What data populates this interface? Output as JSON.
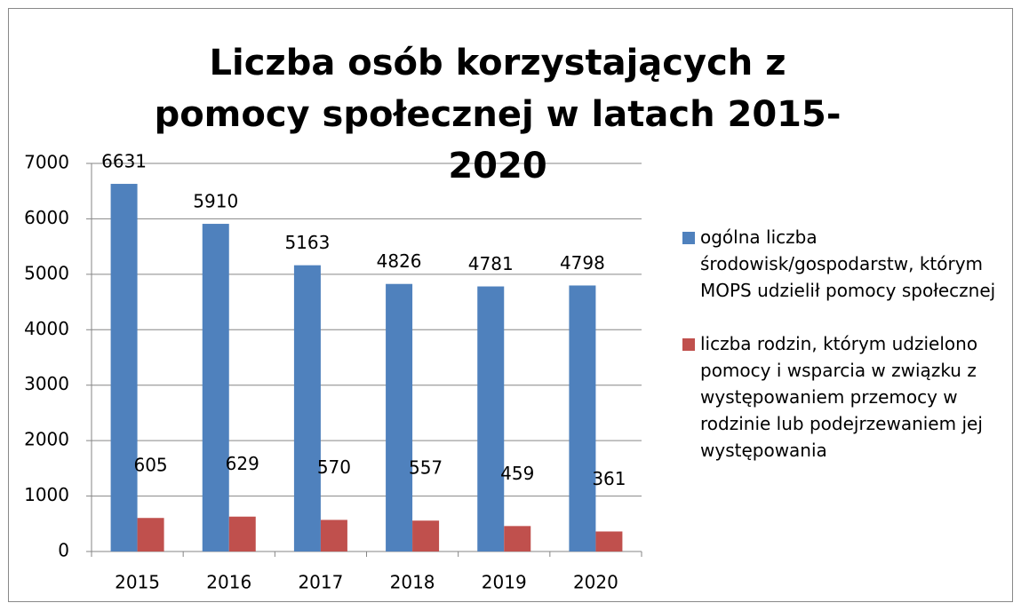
{
  "chart_data": {
    "type": "bar",
    "title": "Liczba osób korzystających z pomocy społecznej w latach 2015-2020",
    "categories": [
      "2015",
      "2016",
      "2017",
      "2018",
      "2019",
      "2020"
    ],
    "series": [
      {
        "name": "ogólna liczba środowisk/gospodarstw, którym MOPS udzielił pomocy społecznej",
        "color": "#4f81bd",
        "values": [
          6631,
          5910,
          5163,
          4826,
          4781,
          4798
        ]
      },
      {
        "name": "liczba rodzin, którym udzielono pomocy i wsparcia w związku z występowaniem przemocy w rodzinie lub podejrzewaniem jej występowania",
        "color": "#c0504d",
        "values": [
          605,
          629,
          570,
          557,
          459,
          361
        ]
      }
    ],
    "ylim": [
      0,
      7000
    ],
    "yticks": [
      0,
      1000,
      2000,
      3000,
      4000,
      5000,
      6000,
      7000
    ],
    "grid": true,
    "legend": "right"
  }
}
